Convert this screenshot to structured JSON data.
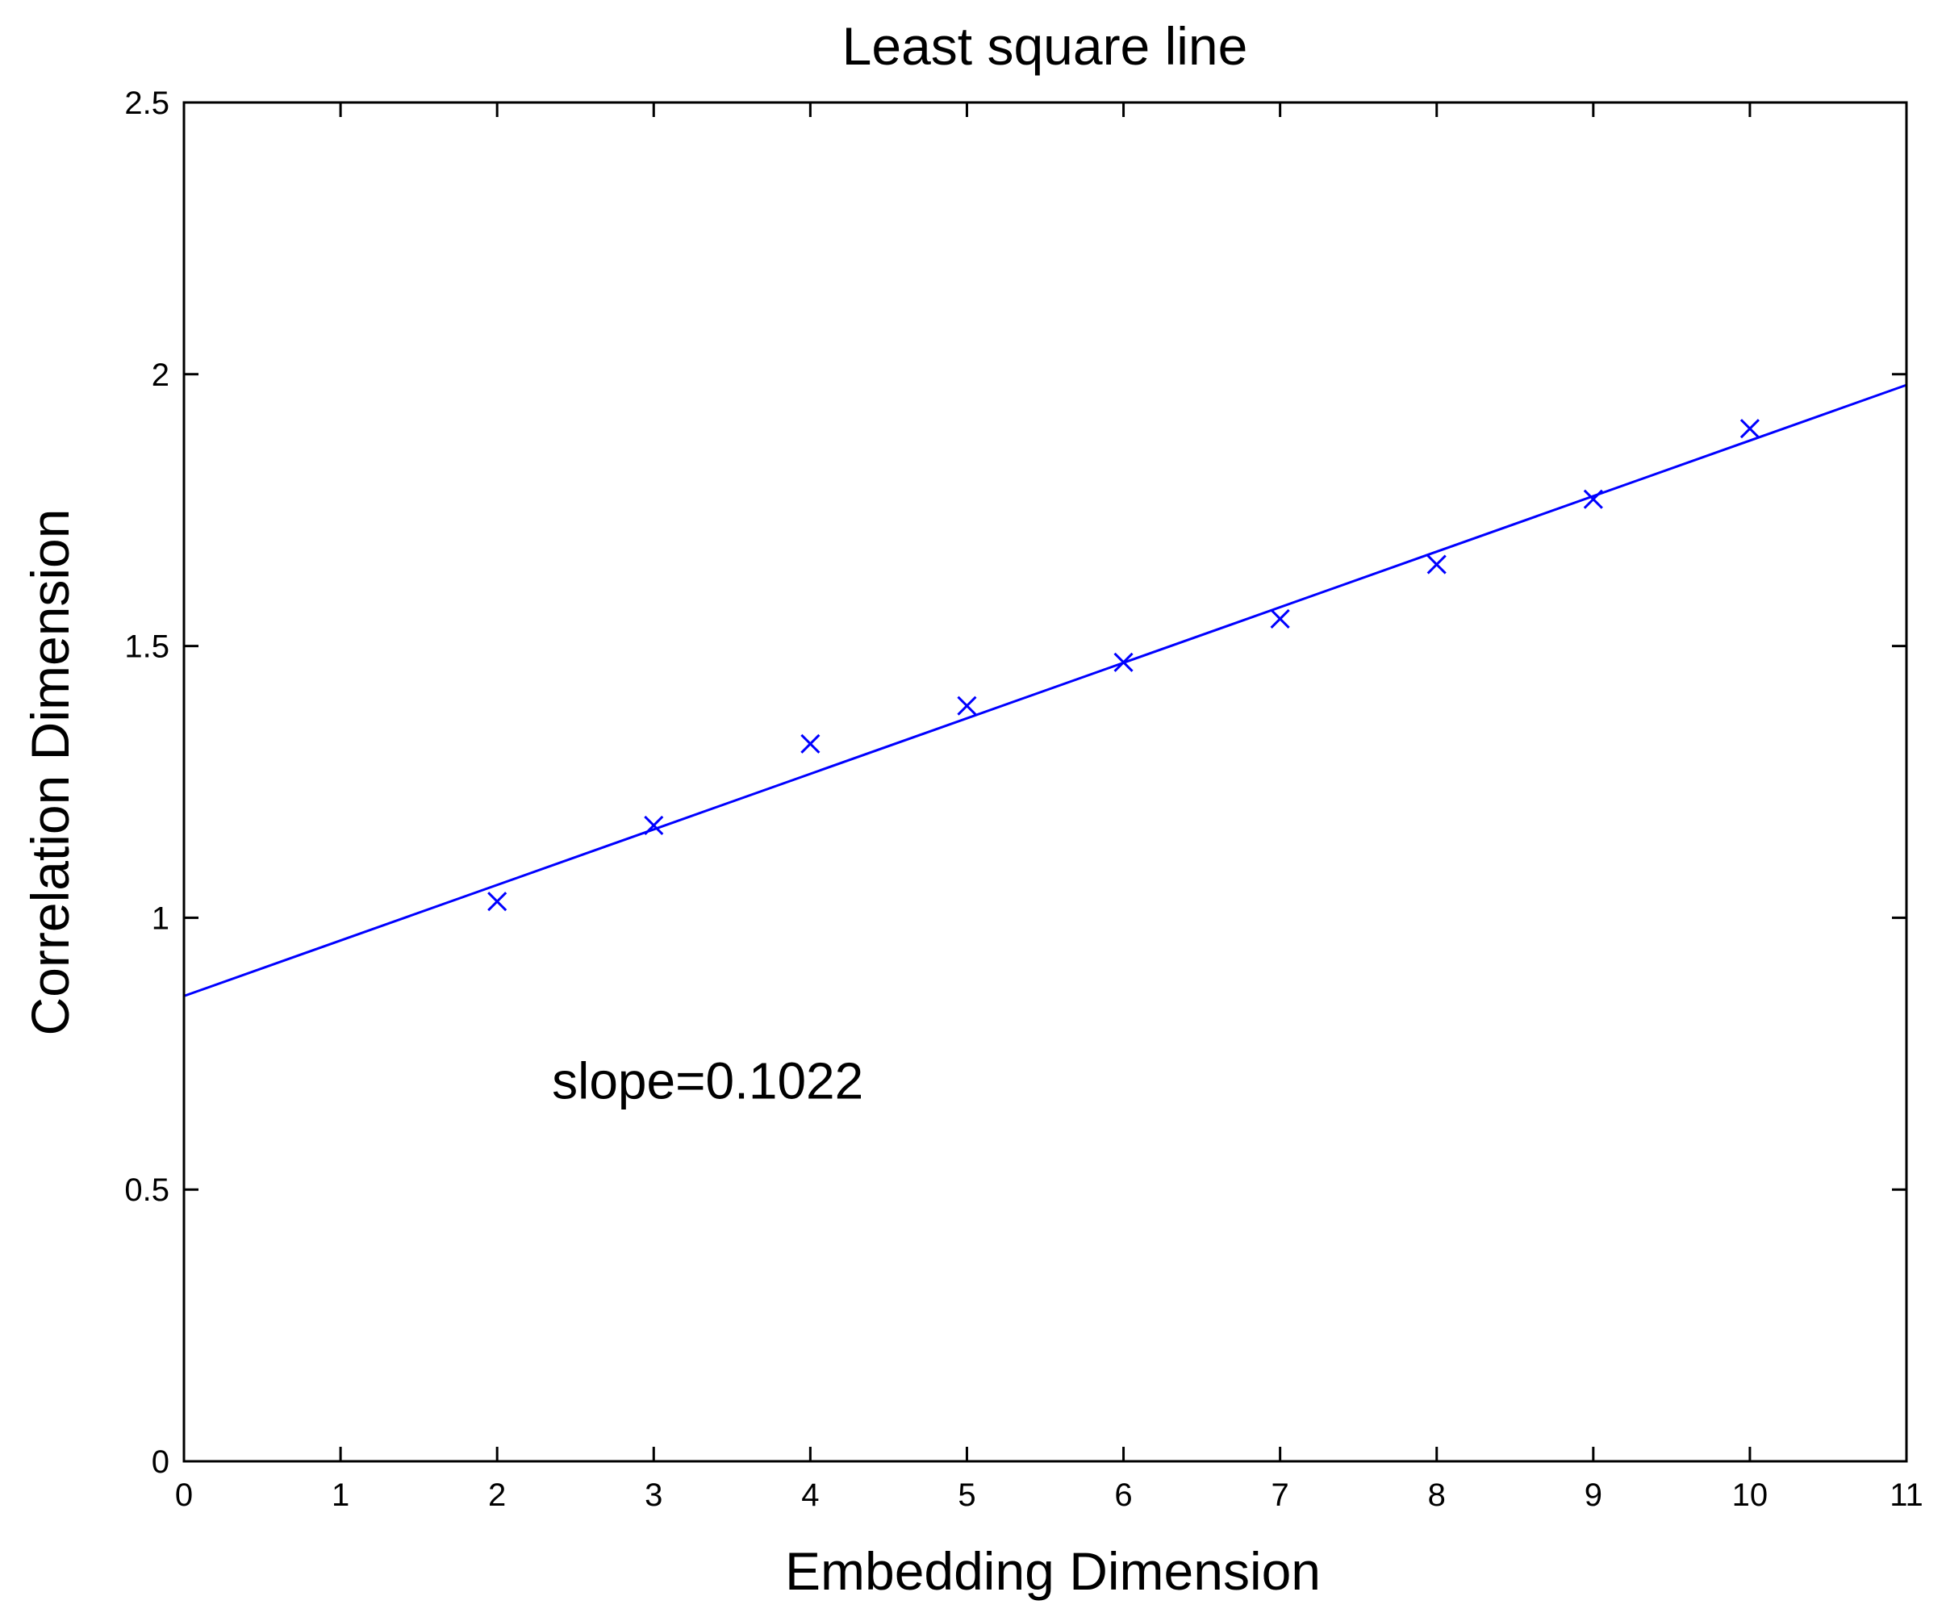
{
  "chart_data": {
    "type": "scatter",
    "title": "Least square line",
    "xlabel": "Embedding Dimension",
    "ylabel": "Correlation Dimension",
    "xlim": [
      0,
      11
    ],
    "ylim": [
      0,
      2.5
    ],
    "xticks": [
      0,
      1,
      2,
      3,
      4,
      5,
      6,
      7,
      8,
      9,
      10,
      11
    ],
    "yticks": [
      0,
      0.5,
      1,
      1.5,
      2,
      2.5
    ],
    "grid": false,
    "series": [
      {
        "marker": "x",
        "color": "#0000ff",
        "x": [
          2,
          3,
          4,
          5,
          6,
          7,
          8,
          9,
          10
        ],
        "y": [
          1.03,
          1.17,
          1.32,
          1.39,
          1.47,
          1.55,
          1.65,
          1.77,
          1.9
        ]
      }
    ],
    "fit_line": {
      "color": "#0000ff",
      "slope": 0.1022,
      "intercept": 0.856,
      "x_range": [
        0,
        11
      ]
    },
    "annotations": [
      {
        "text": "slope=0.1022",
        "x": 2.35,
        "y": 0.7
      }
    ]
  }
}
